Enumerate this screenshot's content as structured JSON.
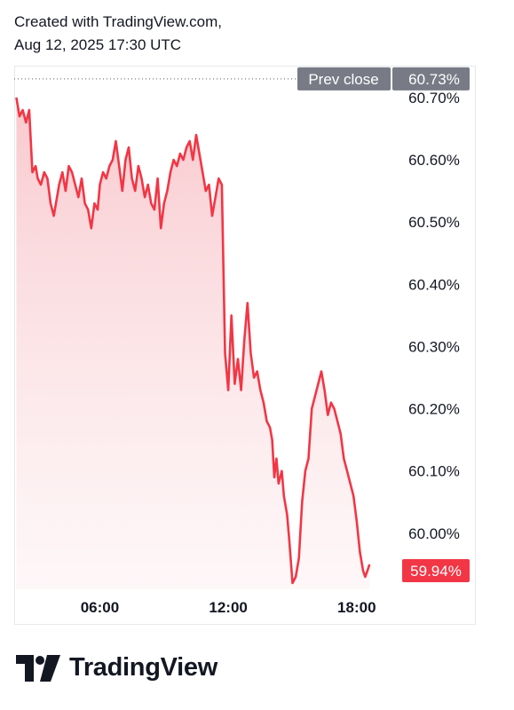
{
  "header": {
    "line1": "Created with TradingView.com,",
    "line2": "Aug 12, 2025 17:30 UTC"
  },
  "brand": {
    "name": "TradingView",
    "logo_icon": "tradingview-logo-icon"
  },
  "colors": {
    "line": "#f23645",
    "fill_top": "#f8c6cb",
    "prev_close_bg": "#787b86",
    "last_price_bg": "#f23645",
    "text": "#131722"
  },
  "chart_data": {
    "type": "area",
    "prev_close": {
      "label": "Prev close",
      "value": 60.73,
      "value_label": "60.73%"
    },
    "last_price": {
      "value": 59.94,
      "value_label": "59.94%"
    },
    "y_ticks": [
      {
        "value": 60.7,
        "label": "60.70%"
      },
      {
        "value": 60.6,
        "label": "60.60%"
      },
      {
        "value": 60.5,
        "label": "60.50%"
      },
      {
        "value": 60.4,
        "label": "60.40%"
      },
      {
        "value": 60.3,
        "label": "60.30%"
      },
      {
        "value": 60.2,
        "label": "60.20%"
      },
      {
        "value": 60.1,
        "label": "60.10%"
      },
      {
        "value": 60.0,
        "label": "60.00%"
      }
    ],
    "x_ticks": [
      {
        "value": 6,
        "label": "06:00"
      },
      {
        "value": 12,
        "label": "12:00"
      },
      {
        "value": 18,
        "label": "18:00"
      }
    ],
    "xlim": [
      2.0,
      19.75
    ],
    "ylim": [
      59.91,
      60.737
    ],
    "x": [
      2.1,
      2.25,
      2.4,
      2.55,
      2.7,
      2.85,
      3.0,
      3.1,
      3.25,
      3.4,
      3.55,
      3.7,
      3.85,
      4.0,
      4.1,
      4.25,
      4.4,
      4.55,
      4.7,
      4.85,
      5.0,
      5.15,
      5.3,
      5.45,
      5.6,
      5.75,
      5.9,
      6.0,
      6.15,
      6.3,
      6.45,
      6.6,
      6.75,
      6.9,
      7.05,
      7.2,
      7.35,
      7.5,
      7.65,
      7.8,
      7.95,
      8.1,
      8.25,
      8.4,
      8.55,
      8.7,
      8.85,
      9.0,
      9.15,
      9.3,
      9.45,
      9.6,
      9.75,
      9.9,
      10.05,
      10.2,
      10.35,
      10.5,
      10.65,
      10.8,
      10.95,
      11.1,
      11.25,
      11.4,
      11.55,
      11.7,
      11.85,
      12.0,
      12.15,
      12.3,
      12.45,
      12.6,
      12.75,
      12.9,
      13.05,
      13.2,
      13.35,
      13.5,
      13.65,
      13.8,
      13.95,
      14.05,
      14.15,
      14.25,
      14.35,
      14.5,
      14.6,
      14.75,
      14.85,
      15.0,
      15.15,
      15.3,
      15.45,
      15.6,
      15.75,
      15.9,
      16.05,
      16.2,
      16.35,
      16.5,
      16.65,
      16.8,
      16.95,
      17.1,
      17.25,
      17.4,
      17.55,
      17.7,
      17.85,
      18.0,
      18.15,
      18.3,
      18.4,
      18.5,
      18.6
    ],
    "values": [
      60.7,
      60.67,
      60.68,
      60.66,
      60.68,
      60.58,
      60.59,
      60.57,
      60.56,
      60.58,
      60.57,
      60.53,
      60.51,
      60.54,
      60.56,
      60.58,
      60.55,
      60.59,
      60.58,
      60.56,
      60.54,
      60.57,
      60.53,
      60.52,
      60.49,
      60.53,
      60.52,
      60.56,
      60.58,
      60.57,
      60.59,
      60.6,
      60.63,
      60.59,
      60.55,
      60.6,
      60.62,
      60.57,
      60.55,
      60.59,
      60.57,
      60.54,
      60.56,
      60.53,
      60.52,
      60.57,
      60.49,
      60.53,
      60.55,
      60.58,
      60.6,
      60.59,
      60.61,
      60.6,
      60.62,
      60.63,
      60.6,
      60.64,
      60.61,
      60.58,
      60.55,
      60.56,
      60.51,
      60.54,
      60.57,
      60.56,
      60.29,
      60.23,
      60.35,
      60.24,
      60.28,
      60.23,
      60.31,
      60.37,
      60.29,
      60.25,
      60.26,
      60.23,
      60.21,
      60.18,
      60.17,
      60.15,
      60.09,
      60.12,
      60.08,
      60.1,
      60.06,
      60.03,
      59.99,
      59.92,
      59.93,
      59.96,
      60.05,
      60.1,
      60.12,
      60.2,
      60.22,
      60.24,
      60.26,
      60.23,
      60.19,
      60.21,
      60.2,
      60.18,
      60.16,
      60.12,
      60.1,
      60.08,
      60.06,
      60.02,
      59.97,
      59.94,
      59.93,
      59.94,
      59.95
    ],
    "grid": false,
    "legend": "none"
  }
}
